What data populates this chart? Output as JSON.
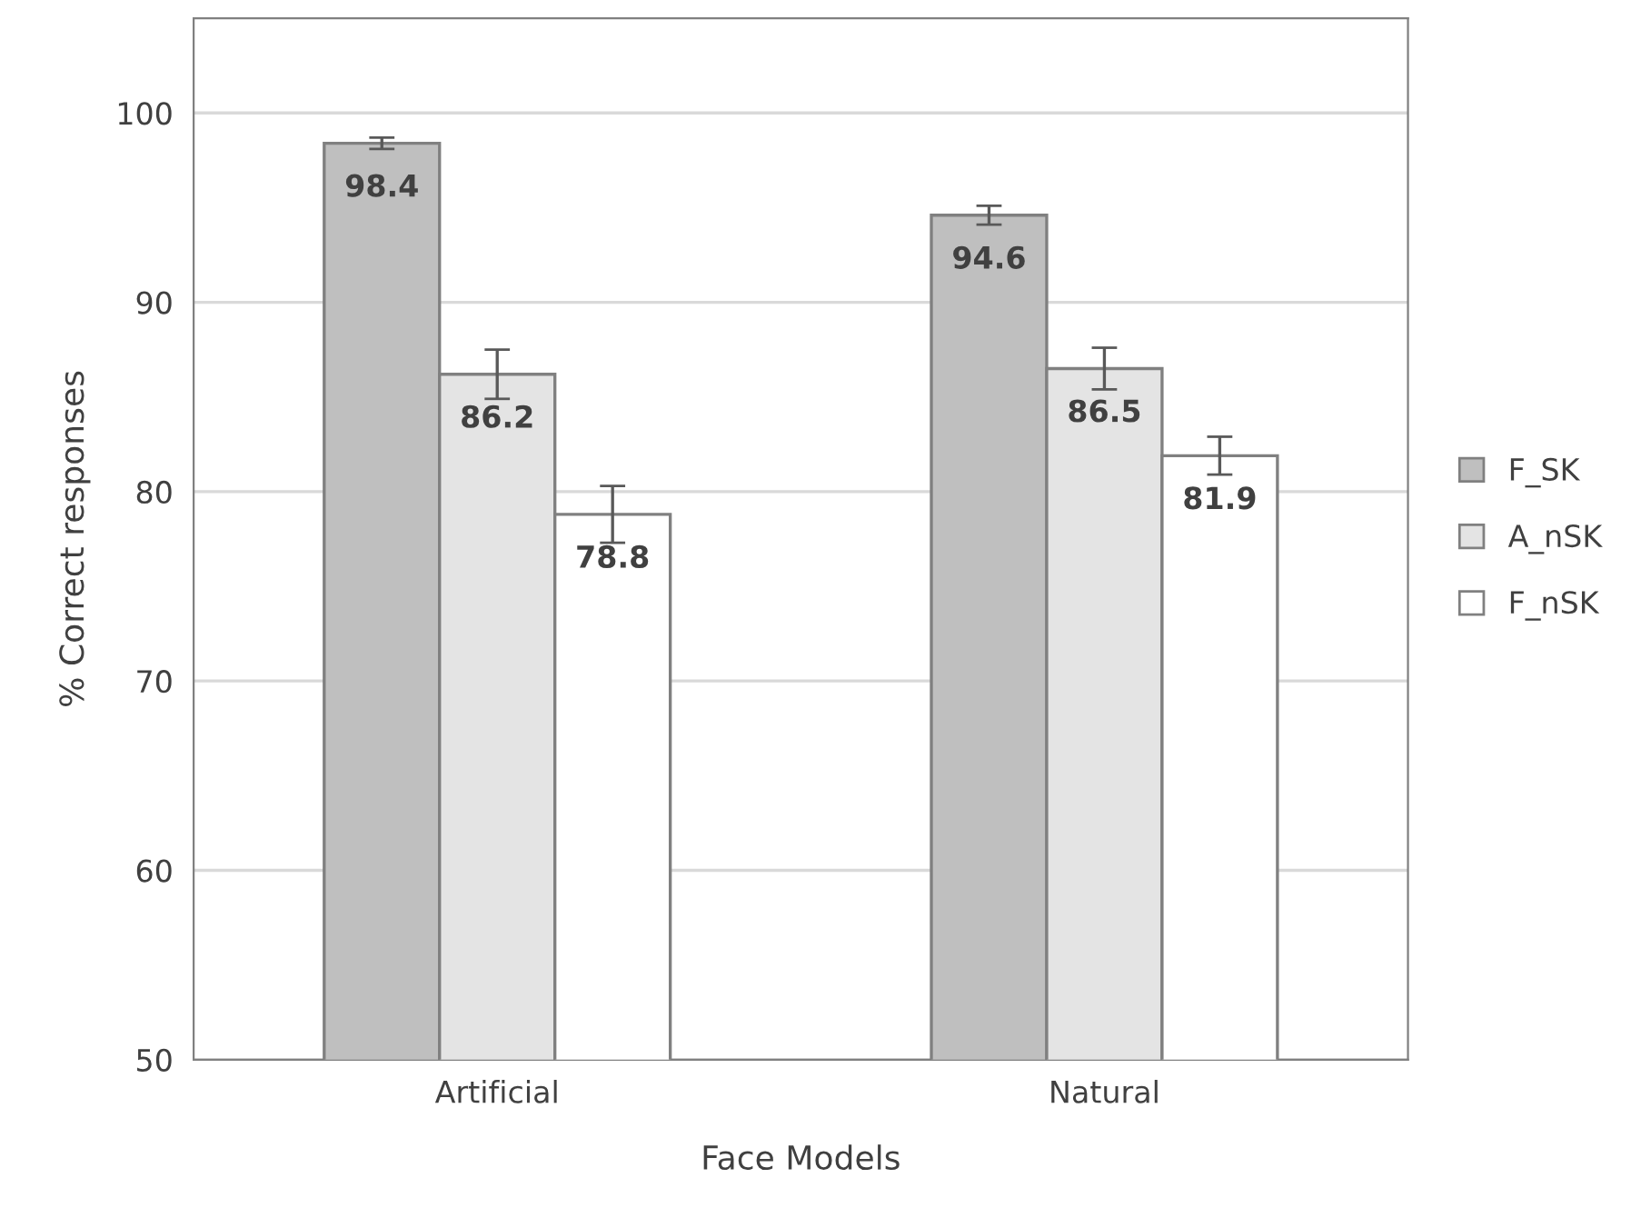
{
  "chart_data": {
    "type": "bar",
    "xlabel": "Face Models",
    "ylabel": "% Correct responses",
    "categories": [
      "Artificial",
      "Natural"
    ],
    "series": [
      {
        "name": "F_SK",
        "color": "#bfbfbf",
        "values": [
          98.4,
          94.6
        ],
        "errors": [
          0.3,
          0.5
        ]
      },
      {
        "name": "A_nSK",
        "color": "#e4e4e4",
        "values": [
          86.2,
          86.5
        ],
        "errors": [
          1.3,
          1.1
        ]
      },
      {
        "name": "F_nSK",
        "color": "#ffffff",
        "values": [
          78.8,
          81.9
        ],
        "errors": [
          1.5,
          1.0
        ]
      }
    ],
    "ylim": [
      50,
      105
    ],
    "yticks": [
      50,
      60,
      70,
      80,
      90,
      100
    ],
    "grid": "y",
    "legend": "right",
    "data_labels": true
  }
}
